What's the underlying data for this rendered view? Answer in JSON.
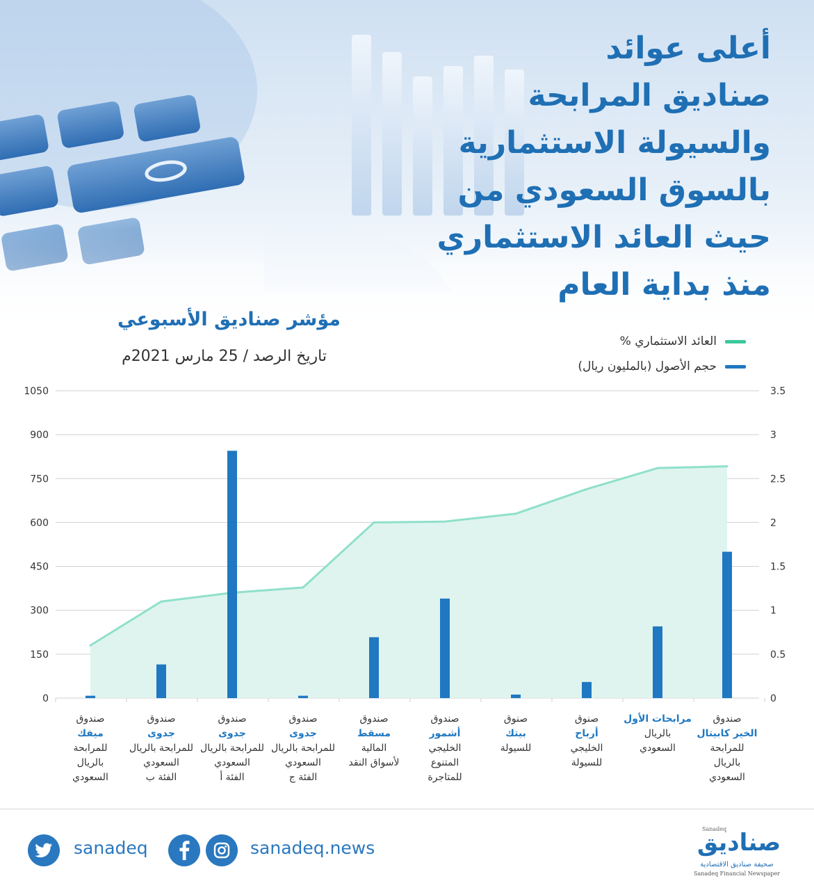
{
  "header": {
    "title_lines": [
      "أعلى عوائد",
      "صناديق المرابحة",
      "والسيولة الاستثمارية",
      "بالسوق السعودي من",
      "حيث العائد الاستثماري",
      "منذ بداية العام"
    ],
    "subtitle": "مؤشر صناديق الأسبوعي",
    "date_label": "تاريخ الرصد / 25 مارس 2021م"
  },
  "legend": {
    "yield_label": "العائد الاستثماري %",
    "assets_label": "حجم الأصول (بالمليون ريال)"
  },
  "colors": {
    "brand_blue": "#1f78c1",
    "title_blue": "#1f6fb4",
    "yield_line": "#8fe0cb",
    "yield_fill": "#dff4ee",
    "legend_green": "#3cc79c",
    "bar_blue": "#1f78c1"
  },
  "funds": [
    {
      "line1": "صندوق",
      "name": "ميفك",
      "rest": [
        "للمرابحة",
        "بالريال",
        "السعودي"
      ]
    },
    {
      "line1": "صندوق",
      "name": "جدوى",
      "rest": [
        "للمرابحة بالريال",
        "السعودي",
        "الفئة ب"
      ]
    },
    {
      "line1": "صندوق",
      "name": "جدوى",
      "rest": [
        "للمرابحة بالريال",
        "السعودي",
        "الفئة أ"
      ]
    },
    {
      "line1": "صندوق",
      "name": "جدوى",
      "rest": [
        "للمرابحة بالريال",
        "السعودي",
        "الفئة ج"
      ]
    },
    {
      "line1": "صندوق",
      "name": "مسقط",
      "rest": [
        "المالية",
        "لأسواق النقد"
      ]
    },
    {
      "line1": "صندوق",
      "name": "أشمور",
      "rest": [
        "الخليجي",
        "المتنوع",
        "للمتاجرة"
      ]
    },
    {
      "line1": "صنوق",
      "name": "بيتك",
      "rest": [
        "للسيولة"
      ]
    },
    {
      "line1": "صنوق",
      "name": "أرباح",
      "rest": [
        "الخليجي",
        "للسيولة"
      ]
    },
    {
      "line1": "",
      "name": "مرابحات الأول",
      "rest": [
        "بالريال",
        "السعودي"
      ]
    },
    {
      "line1": "صندوق",
      "name": "الخير كابيتال",
      "rest": [
        "للمرابحة",
        "بالريال",
        "السعودي"
      ]
    }
  ],
  "chart_data": {
    "type": "bar",
    "categories": [
      "ميفك",
      "جدوى ب",
      "جدوى أ",
      "جدوى ج",
      "مسقط",
      "أشمور",
      "بيتك",
      "أرباح",
      "مرابحات الأول",
      "الخير كابيتال"
    ],
    "series": [
      {
        "name": "حجم الأصول (بالمليون ريال)",
        "type": "bar",
        "axis": "left",
        "values": [
          8,
          115,
          845,
          8,
          208,
          340,
          12,
          55,
          245,
          500
        ]
      },
      {
        "name": "العائد الاستثماري %",
        "type": "area",
        "axis": "right",
        "values": [
          0.6,
          1.1,
          1.2,
          1.26,
          2.0,
          2.01,
          2.1,
          2.38,
          2.62,
          2.64
        ]
      }
    ],
    "left_axis": {
      "ylim": [
        0,
        1050
      ],
      "ticks": [
        "0",
        "150",
        "300",
        "450",
        "600",
        "750",
        "900",
        "1050"
      ]
    },
    "right_axis": {
      "ylim": [
        0,
        3.5
      ],
      "ticks": [
        "0",
        "0.5",
        "1",
        "1.5",
        "2",
        "2.5",
        "3",
        "3.5"
      ]
    },
    "grid": true,
    "legend_position": "top-right"
  },
  "footer": {
    "twitter_handle": "sanadeq",
    "website": "sanadeq.news",
    "logo_en_top": "Sanadeq",
    "logo_ar": "صناديق",
    "logo_ar_sub": "صحيفة صناديق الاقتصادية",
    "logo_en_sub": "Sanadeq Financial Newspaper"
  }
}
